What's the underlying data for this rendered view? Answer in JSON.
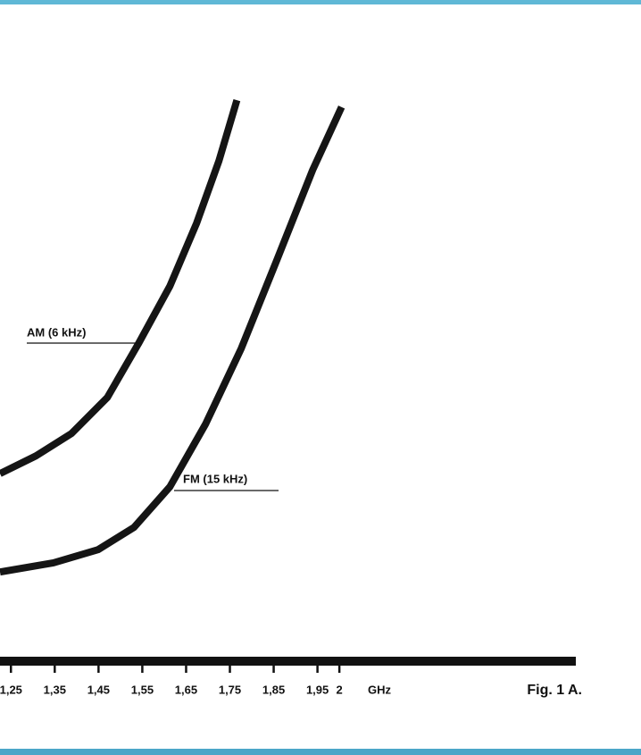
{
  "chart_data": {
    "type": "line",
    "caption": "Fig. 1 A.",
    "xlabel": "GHz",
    "xlim": [
      1.225,
      2.54
    ],
    "ylim": [
      0,
      100
    ],
    "xticks": [
      {
        "value": 1.25,
        "label": "1,25"
      },
      {
        "value": 1.35,
        "label": "1,35"
      },
      {
        "value": 1.45,
        "label": "1,45"
      },
      {
        "value": 1.55,
        "label": "1,55"
      },
      {
        "value": 1.65,
        "label": "1,65"
      },
      {
        "value": 1.75,
        "label": "1,75"
      },
      {
        "value": 1.85,
        "label": "1,85"
      },
      {
        "value": 1.95,
        "label": "1,95"
      },
      2
    ],
    "series": [
      {
        "name": "AM (6 kHz)",
        "color": "#151515",
        "x": [
          1.225,
          1.307,
          1.388,
          1.47,
          1.541,
          1.613,
          1.674,
          1.725,
          1.766
        ],
        "values": [
          32.8,
          35.9,
          39.8,
          46.1,
          55.5,
          65.6,
          76.6,
          87.5,
          98.1
        ]
      },
      {
        "name": "FM (15 kHz)",
        "color": "#151515",
        "x": [
          1.225,
          1.347,
          1.449,
          1.531,
          1.613,
          1.694,
          1.776,
          1.858,
          1.939,
          2.005
        ],
        "values": [
          15.6,
          17.2,
          19.5,
          23.4,
          30.5,
          41.4,
          54.7,
          70.3,
          85.9,
          96.9
        ]
      }
    ]
  }
}
